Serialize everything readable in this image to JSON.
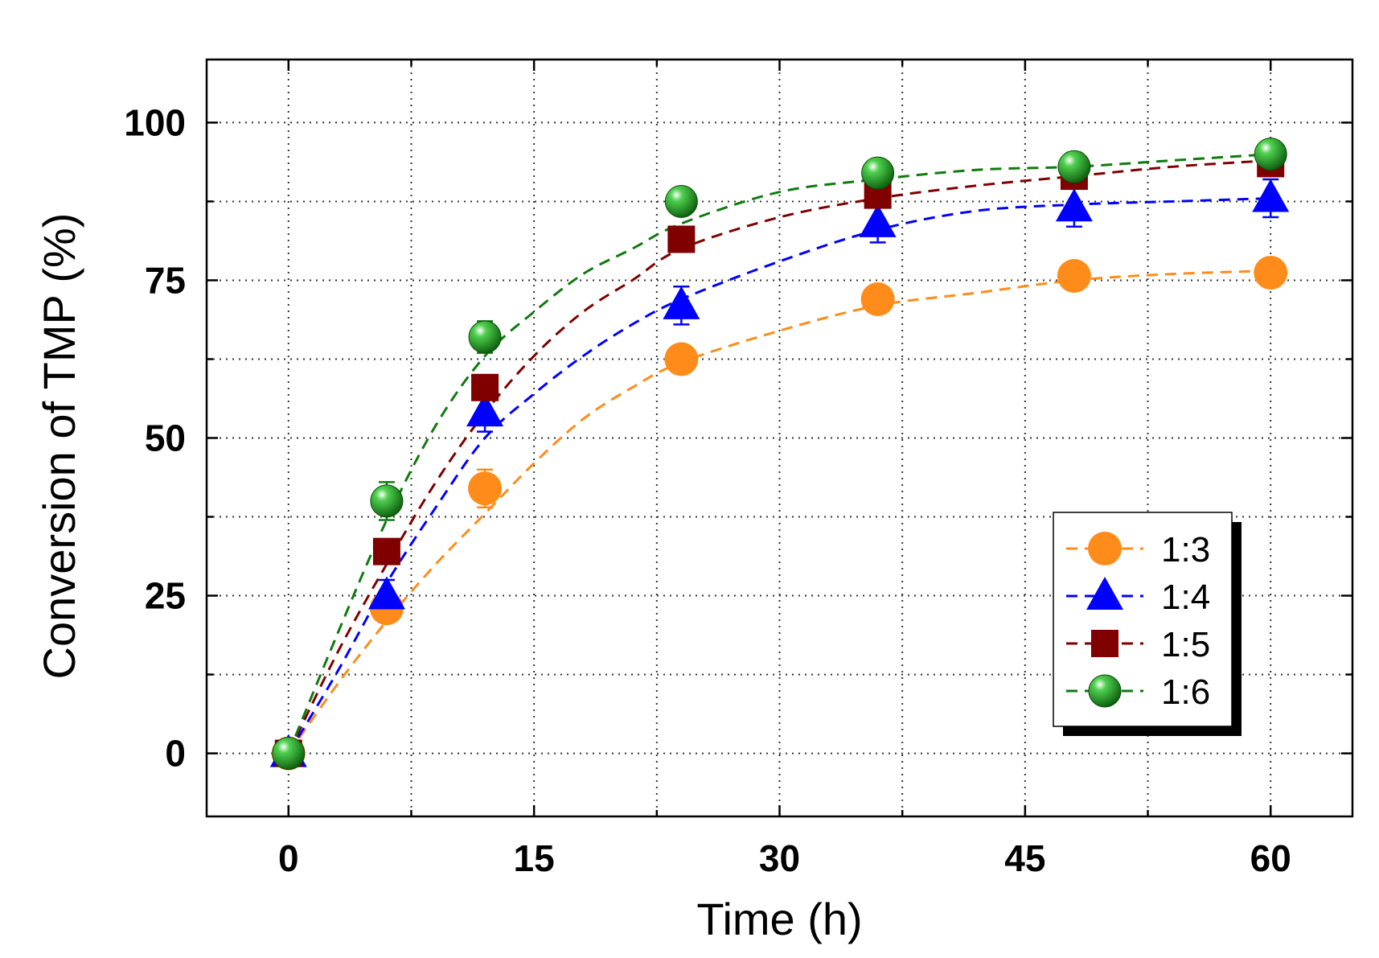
{
  "chart_data": {
    "type": "scatter",
    "xlabel": "Time (h)",
    "ylabel": "Conversion of TMP (%)",
    "xlim": [
      -5,
      65
    ],
    "ylim": [
      -10,
      110
    ],
    "xticks": [
      0,
      15,
      30,
      45,
      60
    ],
    "xtick_labels": [
      "0",
      "15",
      "30",
      "45",
      "60"
    ],
    "yticks": [
      0,
      25,
      50,
      75,
      100
    ],
    "ytick_labels": [
      "0",
      "25",
      "50",
      "75",
      "100"
    ],
    "x_minor_step": 7.5,
    "y_minor_step": 12.5,
    "grid": true,
    "legend_position": "lower-right",
    "x": [
      0,
      6,
      12,
      24,
      36,
      48,
      60
    ],
    "series": [
      {
        "name": "1:3",
        "marker": "circle",
        "color": "#ff8c1a",
        "values": [
          0,
          23,
          42,
          62.5,
          72,
          75.7,
          76.2
        ],
        "errors": [
          0,
          2,
          3,
          0,
          0,
          0,
          0
        ],
        "fit": [
          [
            0,
            0
          ],
          [
            3,
            11
          ],
          [
            6,
            21
          ],
          [
            9,
            30
          ],
          [
            12,
            38
          ],
          [
            15,
            46
          ],
          [
            18,
            53
          ],
          [
            21,
            58
          ],
          [
            24,
            62
          ],
          [
            30,
            67
          ],
          [
            36,
            71
          ],
          [
            42,
            73
          ],
          [
            48,
            75
          ],
          [
            54,
            76
          ],
          [
            60,
            76.5
          ]
        ]
      },
      {
        "name": "1:4",
        "marker": "triangle",
        "color": "#0000ff",
        "values": [
          0,
          25,
          54,
          71,
          84,
          86.5,
          88
        ],
        "errors": [
          0,
          2.5,
          3,
          3,
          3,
          3,
          3
        ],
        "fit": [
          [
            0,
            0
          ],
          [
            3,
            13
          ],
          [
            6,
            27
          ],
          [
            9,
            39
          ],
          [
            12,
            50
          ],
          [
            15,
            57
          ],
          [
            18,
            63
          ],
          [
            21,
            68
          ],
          [
            24,
            72
          ],
          [
            30,
            78
          ],
          [
            36,
            83
          ],
          [
            42,
            86
          ],
          [
            48,
            87
          ],
          [
            54,
            87.5
          ],
          [
            60,
            88
          ]
        ]
      },
      {
        "name": "1:5",
        "marker": "square",
        "color": "#800000",
        "values": [
          0,
          32,
          58,
          81.5,
          88.5,
          91.5,
          93.5
        ],
        "errors": [
          0,
          1.5,
          1.5,
          2,
          1.5,
          1.5,
          1.5
        ],
        "fit": [
          [
            0,
            0
          ],
          [
            3,
            16
          ],
          [
            6,
            30
          ],
          [
            9,
            43
          ],
          [
            12,
            54
          ],
          [
            15,
            63
          ],
          [
            18,
            70
          ],
          [
            21,
            75
          ],
          [
            24,
            80
          ],
          [
            30,
            85
          ],
          [
            36,
            88
          ],
          [
            42,
            90
          ],
          [
            48,
            91.5
          ],
          [
            54,
            93
          ],
          [
            60,
            94
          ]
        ]
      },
      {
        "name": "1:6",
        "marker": "sphere",
        "color": "#107a10",
        "values": [
          0,
          40,
          66,
          87.5,
          92,
          93,
          95
        ],
        "errors": [
          0,
          3,
          2.5,
          1,
          1,
          1,
          1
        ],
        "fit": [
          [
            0,
            0
          ],
          [
            3,
            19
          ],
          [
            6,
            37
          ],
          [
            9,
            52
          ],
          [
            12,
            63
          ],
          [
            15,
            70
          ],
          [
            18,
            76
          ],
          [
            21,
            80
          ],
          [
            24,
            84
          ],
          [
            30,
            89
          ],
          [
            36,
            91
          ],
          [
            42,
            92.5
          ],
          [
            48,
            93
          ],
          [
            54,
            94
          ],
          [
            60,
            95
          ]
        ]
      }
    ]
  }
}
